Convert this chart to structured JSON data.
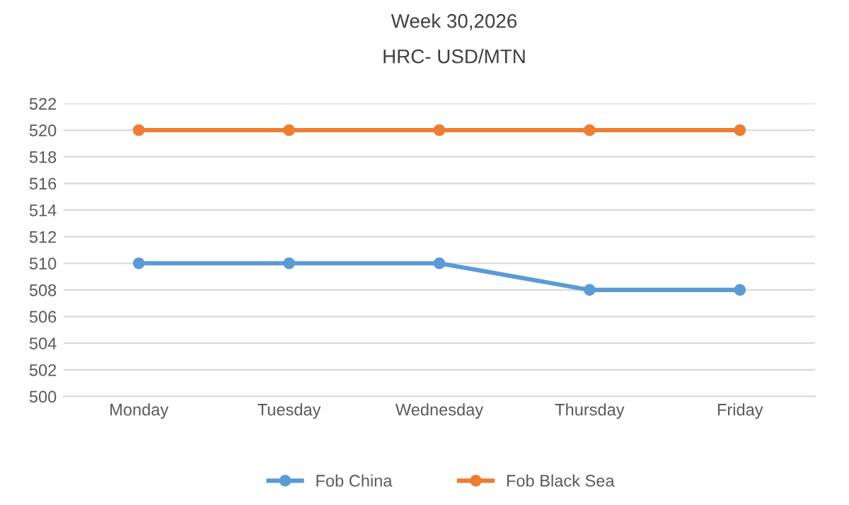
{
  "chart_data": {
    "type": "line",
    "title": "Week 30,2026",
    "subtitle": "HRC- USD/MTN",
    "categories": [
      "Monday",
      "Tuesday",
      "Wednesday",
      "Thursday",
      "Friday"
    ],
    "series": [
      {
        "name": "Fob China",
        "color": "#5b9bd5",
        "values": [
          510,
          510,
          510,
          508,
          508
        ]
      },
      {
        "name": "Fob Black Sea",
        "color": "#ed7d31",
        "values": [
          520,
          520,
          520,
          520,
          520
        ]
      }
    ],
    "ylim": [
      500,
      522
    ],
    "yticks": [
      500,
      502,
      504,
      506,
      508,
      510,
      512,
      514,
      516,
      518,
      520,
      522
    ],
    "grid": "y",
    "legend": "bottom",
    "marker": "circle",
    "line_style": "solid"
  }
}
